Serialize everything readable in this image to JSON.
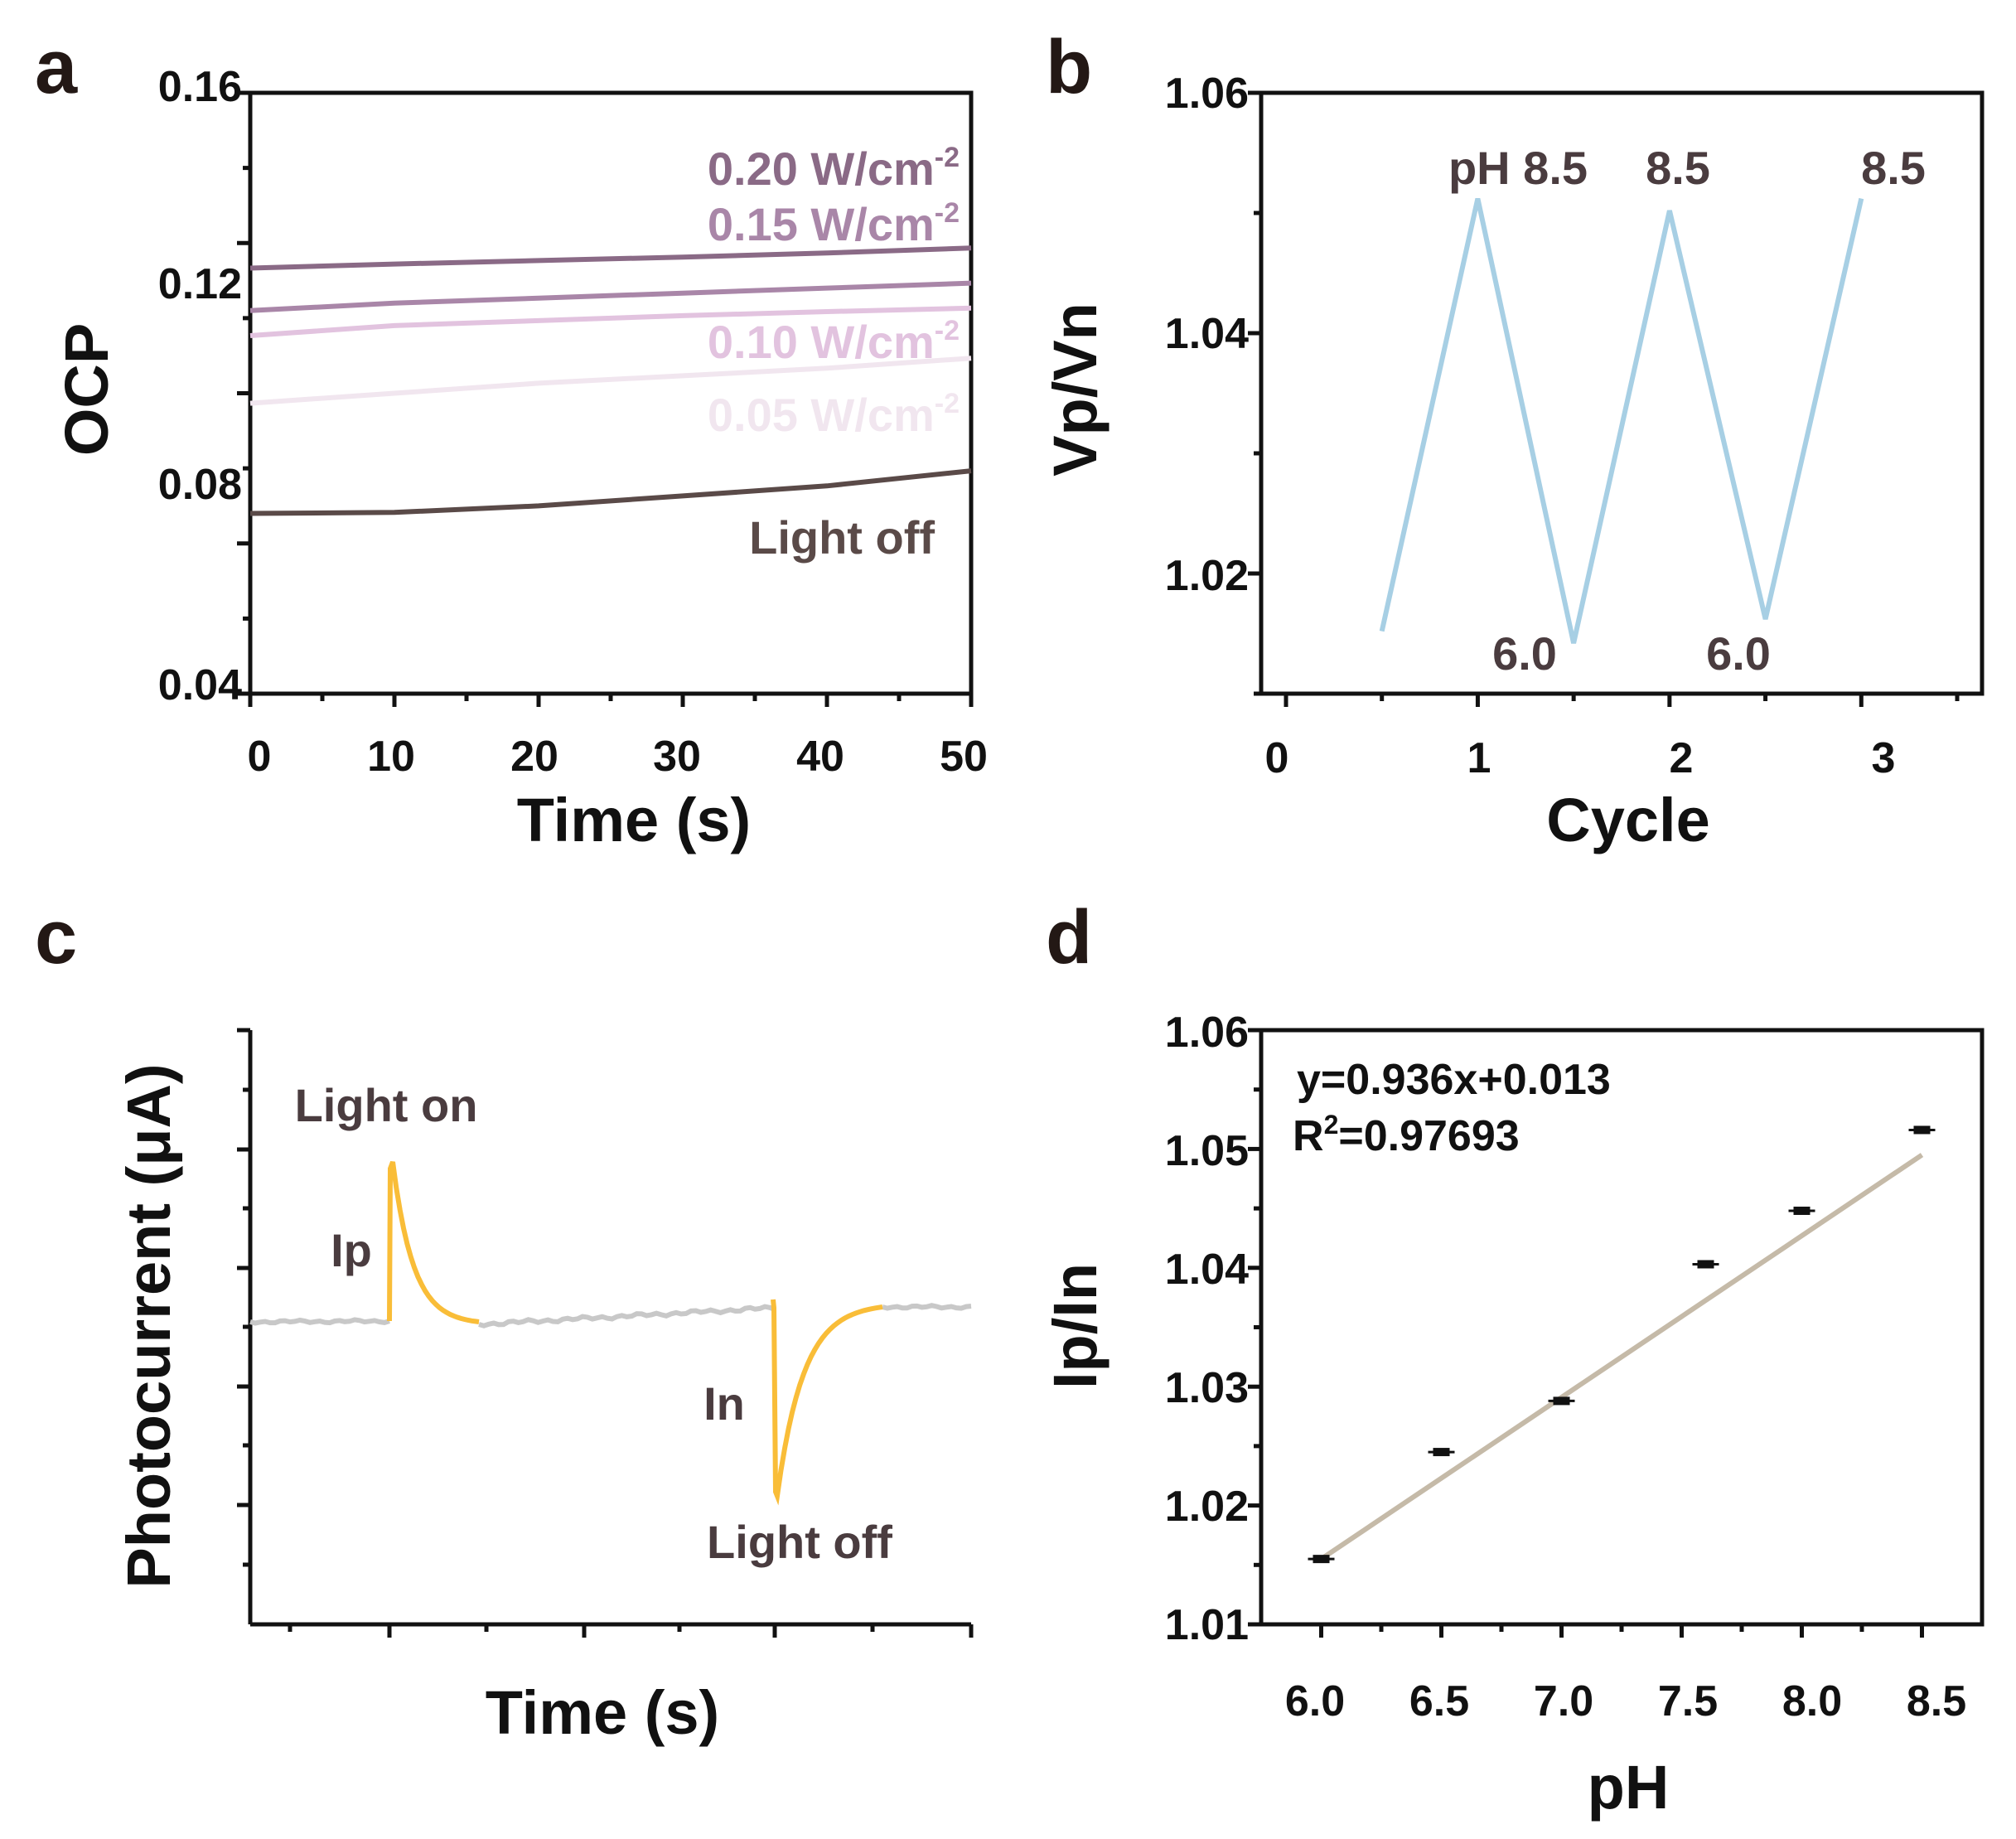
{
  "chart_data": [
    {
      "panel": "a",
      "type": "line",
      "xlabel": "Time (s)",
      "ylabel": "OCP",
      "xlim": [
        0,
        50
      ],
      "ylim": [
        0.04,
        0.16
      ],
      "xticks": [
        "0",
        "10",
        "20",
        "30",
        "40",
        "50"
      ],
      "yticks": [
        "0.04",
        "0.08",
        "0.12",
        "0.16"
      ],
      "x": [
        0,
        10,
        20,
        30,
        40,
        50
      ],
      "series": [
        {
          "name": "0.20 W/cm",
          "sup": "-2",
          "color": "#8a6a86",
          "values": [
            0.125,
            0.1258,
            0.1265,
            0.1272,
            0.128,
            0.129
          ]
        },
        {
          "name": "0.15 W/cm",
          "sup": "-2",
          "color": "#a986a8",
          "values": [
            0.1165,
            0.118,
            0.119,
            0.12,
            0.121,
            0.122
          ]
        },
        {
          "name": "0.10 W/cm",
          "sup": "-2",
          "color": "#e2c3df",
          "values": [
            0.1115,
            0.1135,
            0.1145,
            0.1155,
            0.1163,
            0.117
          ]
        },
        {
          "name": "0.05 W/cm",
          "sup": "-2",
          "color": "#f1e6ef",
          "values": [
            0.098,
            0.1,
            0.102,
            0.1035,
            0.105,
            0.107
          ]
        },
        {
          "name": "Light off",
          "sup": "",
          "color": "#5a4a48",
          "values": [
            0.076,
            0.0762,
            0.0775,
            0.0795,
            0.0815,
            0.0845
          ]
        }
      ]
    },
    {
      "panel": "b",
      "type": "line",
      "xlabel": "Cycle",
      "ylabel": "Vp/Vn",
      "xlim": [
        0,
        3.5
      ],
      "ylim": [
        1.01,
        1.06
      ],
      "xticks": [
        "0",
        "1",
        "2",
        "3"
      ],
      "yticks": [
        "1.02",
        "1.04",
        "1.06"
      ],
      "color": "#a7cfe4",
      "x": [
        0.5,
        1.0,
        1.5,
        2.0,
        2.5,
        3.0
      ],
      "values": [
        1.0152,
        1.0512,
        1.0142,
        1.0502,
        1.0162,
        1.0512
      ],
      "annotations": [
        "pH 8.5",
        "8.5",
        "8.5",
        "6.0",
        "6.0"
      ]
    },
    {
      "panel": "c",
      "type": "line",
      "xlabel": "Time (s)",
      "ylabel": "Photocurrent (μA)",
      "baseline_color": "#c8c8c8",
      "response_color": "#f9bd38",
      "annotations": [
        "Light on",
        "Ip",
        "In",
        "Light off"
      ]
    },
    {
      "panel": "d",
      "type": "scatter",
      "xlabel": "pH",
      "ylabel": "Ip/In",
      "xlim": [
        5.75,
        8.75
      ],
      "ylim": [
        1.01,
        1.06
      ],
      "xticks": [
        "6.0",
        "6.5",
        "7.0",
        "7.5",
        "8.0",
        "8.5"
      ],
      "yticks": [
        "1.01",
        "1.02",
        "1.03",
        "1.04",
        "1.05",
        "1.06"
      ],
      "x": [
        6.0,
        6.5,
        7.0,
        7.6,
        8.0,
        8.5
      ],
      "values": [
        1.0155,
        1.0245,
        1.0288,
        1.0403,
        1.0448,
        1.0516
      ],
      "fit": {
        "equation": "y=0.936x+0.013",
        "r2_prefix": "R",
        "r2_sup": "2",
        "r2_value": "=0.97693",
        "x0": 6.0,
        "y0": 1.0155,
        "x1": 8.5,
        "y1": 1.0495,
        "color": "#c5baa8"
      }
    }
  ],
  "panels": [
    "a",
    "b",
    "c",
    "d"
  ]
}
